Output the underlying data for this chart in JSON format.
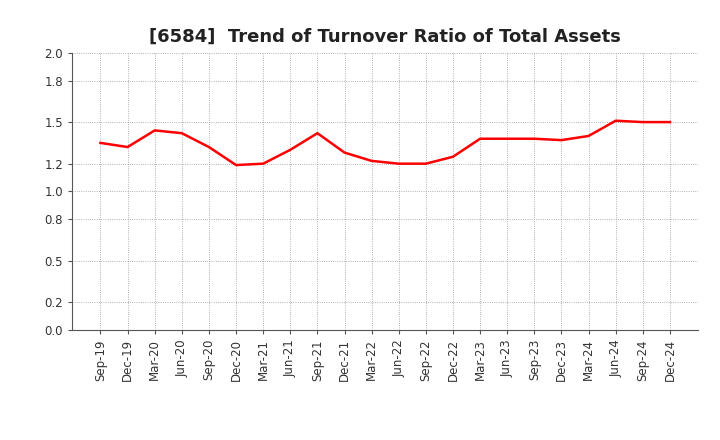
{
  "title": "[6584]  Trend of Turnover Ratio of Total Assets",
  "x_labels": [
    "Sep-19",
    "Dec-19",
    "Mar-20",
    "Jun-20",
    "Sep-20",
    "Dec-20",
    "Mar-21",
    "Jun-21",
    "Sep-21",
    "Dec-21",
    "Mar-22",
    "Jun-22",
    "Sep-22",
    "Dec-22",
    "Mar-23",
    "Jun-23",
    "Sep-23",
    "Dec-23",
    "Mar-24",
    "Jun-24",
    "Sep-24",
    "Dec-24"
  ],
  "y_values": [
    1.35,
    1.32,
    1.44,
    1.42,
    1.32,
    1.19,
    1.2,
    1.3,
    1.42,
    1.28,
    1.22,
    1.2,
    1.2,
    1.25,
    1.38,
    1.38,
    1.38,
    1.37,
    1.4,
    1.51,
    1.5,
    1.5
  ],
  "line_color": "#FF0000",
  "line_width": 1.8,
  "ylim": [
    0.0,
    2.0
  ],
  "yticks": [
    0.0,
    0.2,
    0.5,
    0.8,
    1.0,
    1.2,
    1.5,
    1.8,
    2.0
  ],
  "background_color": "#FFFFFF",
  "grid_color": "#999999",
  "title_fontsize": 13,
  "tick_fontsize": 8.5
}
